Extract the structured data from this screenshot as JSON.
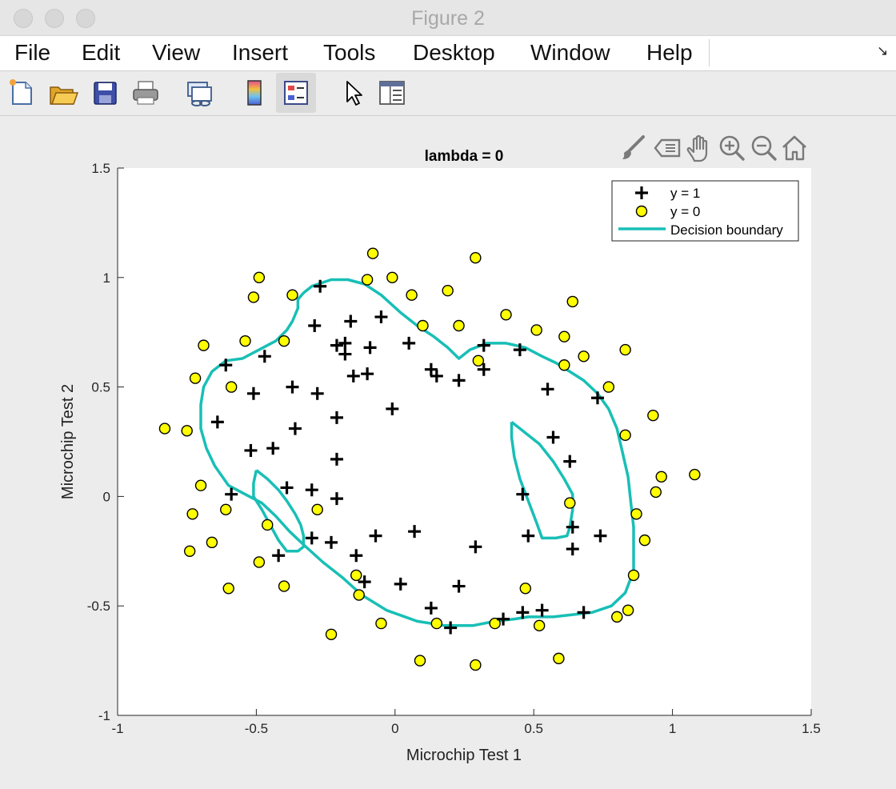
{
  "window": {
    "title": "Figure 2"
  },
  "menu": {
    "items": [
      "File",
      "Edit",
      "View",
      "Insert",
      "Tools",
      "Desktop",
      "Window",
      "Help"
    ],
    "dock_icon": "dock-arrow-icon"
  },
  "toolbar": {
    "icons": [
      "new-figure-icon",
      "open-file-icon",
      "save-icon",
      "print-icon",
      "link-plot-icon",
      "insert-colorbar-icon",
      "insert-legend-icon",
      "edit-plot-pointer-icon",
      "property-inspector-icon"
    ]
  },
  "axes_toolbar": {
    "icons": [
      "brush-icon",
      "data-tips-icon",
      "pan-hand-icon",
      "zoom-in-icon",
      "zoom-out-icon",
      "restore-view-home-icon"
    ]
  },
  "colors": {
    "boundary": "#18bfb6",
    "y0_fill": "#ffff00",
    "marker": "#000000",
    "axes_bg": "#ffffff",
    "figure_bg": "#ececec"
  },
  "chart_data": {
    "type": "scatter",
    "title": "lambda = 0",
    "xlabel": "Microchip Test 1",
    "ylabel": "Microchip Test 2",
    "xlim": [
      -1,
      1.5
    ],
    "ylim": [
      -1,
      1.5
    ],
    "xticks": [
      "-1",
      "-0.5",
      "0",
      "0.5",
      "1",
      "1.5"
    ],
    "yticks": [
      "-1",
      "-0.5",
      "0",
      "0.5",
      "1",
      "1.5"
    ],
    "grid": false,
    "legend": {
      "position": "top-right",
      "entries": [
        "y = 1",
        "y = 0",
        "Decision boundary"
      ]
    },
    "series": [
      {
        "name": "y = 1",
        "marker": "plus",
        "points": [
          [
            -0.27,
            0.96
          ],
          [
            -0.29,
            0.78
          ],
          [
            -0.16,
            0.8
          ],
          [
            -0.05,
            0.82
          ],
          [
            -0.21,
            0.69
          ],
          [
            -0.18,
            0.7
          ],
          [
            -0.09,
            0.68
          ],
          [
            -0.18,
            0.65
          ],
          [
            0.05,
            0.7
          ],
          [
            0.32,
            0.69
          ],
          [
            0.45,
            0.67
          ],
          [
            -0.61,
            0.6
          ],
          [
            -0.47,
            0.64
          ],
          [
            -0.15,
            0.55
          ],
          [
            -0.1,
            0.56
          ],
          [
            0.13,
            0.58
          ],
          [
            0.15,
            0.55
          ],
          [
            0.23,
            0.53
          ],
          [
            0.32,
            0.58
          ],
          [
            -0.51,
            0.47
          ],
          [
            -0.37,
            0.5
          ],
          [
            -0.28,
            0.47
          ],
          [
            0.55,
            0.49
          ],
          [
            0.73,
            0.45
          ],
          [
            -0.64,
            0.34
          ],
          [
            -0.36,
            0.31
          ],
          [
            -0.21,
            0.36
          ],
          [
            -0.01,
            0.4
          ],
          [
            -0.52,
            0.21
          ],
          [
            -0.44,
            0.22
          ],
          [
            -0.21,
            0.17
          ],
          [
            0.57,
            0.27
          ],
          [
            0.63,
            0.16
          ],
          [
            -0.59,
            0.01
          ],
          [
            -0.39,
            0.04
          ],
          [
            -0.3,
            0.03
          ],
          [
            -0.21,
            -0.01
          ],
          [
            0.46,
            0.01
          ],
          [
            -0.3,
            -0.19
          ],
          [
            -0.23,
            -0.21
          ],
          [
            -0.07,
            -0.18
          ],
          [
            0.07,
            -0.16
          ],
          [
            0.29,
            -0.23
          ],
          [
            0.48,
            -0.18
          ],
          [
            0.64,
            -0.14
          ],
          [
            0.74,
            -0.18
          ],
          [
            0.64,
            -0.24
          ],
          [
            -0.42,
            -0.27
          ],
          [
            -0.14,
            -0.27
          ],
          [
            -0.11,
            -0.39
          ],
          [
            0.02,
            -0.4
          ],
          [
            0.23,
            -0.41
          ],
          [
            0.13,
            -0.51
          ],
          [
            0.46,
            -0.53
          ],
          [
            0.53,
            -0.52
          ],
          [
            0.68,
            -0.53
          ],
          [
            0.39,
            -0.56
          ],
          [
            0.2,
            -0.6
          ]
        ]
      },
      {
        "name": "y = 0",
        "marker": "circle",
        "points": [
          [
            -0.08,
            1.11
          ],
          [
            0.29,
            1.09
          ],
          [
            -0.49,
            1.0
          ],
          [
            -0.1,
            0.99
          ],
          [
            -0.01,
            1.0
          ],
          [
            -0.51,
            0.91
          ],
          [
            -0.37,
            0.92
          ],
          [
            0.06,
            0.92
          ],
          [
            0.19,
            0.94
          ],
          [
            0.64,
            0.89
          ],
          [
            0.4,
            0.83
          ],
          [
            0.1,
            0.78
          ],
          [
            0.23,
            0.78
          ],
          [
            0.51,
            0.76
          ],
          [
            -0.54,
            0.71
          ],
          [
            -0.4,
            0.71
          ],
          [
            0.61,
            0.73
          ],
          [
            -0.69,
            0.69
          ],
          [
            0.83,
            0.67
          ],
          [
            0.68,
            0.64
          ],
          [
            0.3,
            0.62
          ],
          [
            0.61,
            0.6
          ],
          [
            -0.72,
            0.54
          ],
          [
            -0.59,
            0.5
          ],
          [
            0.77,
            0.5
          ],
          [
            -0.83,
            0.31
          ],
          [
            -0.75,
            0.3
          ],
          [
            0.93,
            0.37
          ],
          [
            0.83,
            0.28
          ],
          [
            -0.7,
            0.05
          ],
          [
            0.96,
            0.09
          ],
          [
            1.08,
            0.1
          ],
          [
            0.94,
            0.02
          ],
          [
            -0.73,
            -0.08
          ],
          [
            -0.61,
            -0.06
          ],
          [
            -0.28,
            -0.06
          ],
          [
            0.63,
            -0.03
          ],
          [
            0.87,
            -0.08
          ],
          [
            -0.46,
            -0.13
          ],
          [
            -0.66,
            -0.21
          ],
          [
            0.9,
            -0.2
          ],
          [
            -0.74,
            -0.25
          ],
          [
            -0.49,
            -0.3
          ],
          [
            -0.14,
            -0.36
          ],
          [
            0.86,
            -0.36
          ],
          [
            -0.6,
            -0.42
          ],
          [
            -0.4,
            -0.41
          ],
          [
            -0.13,
            -0.45
          ],
          [
            0.47,
            -0.42
          ],
          [
            0.84,
            -0.52
          ],
          [
            0.8,
            -0.55
          ],
          [
            -0.05,
            -0.58
          ],
          [
            0.15,
            -0.58
          ],
          [
            0.36,
            -0.58
          ],
          [
            0.52,
            -0.59
          ],
          [
            -0.23,
            -0.63
          ],
          [
            0.59,
            -0.74
          ],
          [
            0.09,
            -0.75
          ],
          [
            0.29,
            -0.77
          ]
        ]
      },
      {
        "name": "Decision boundary",
        "type": "line",
        "segments": [
          [
            [
              -0.33,
              0.93
            ],
            [
              -0.3,
              0.96
            ],
            [
              -0.23,
              0.99
            ],
            [
              -0.17,
              0.99
            ],
            [
              -0.11,
              0.97
            ],
            [
              -0.05,
              0.92
            ],
            [
              0.02,
              0.84
            ],
            [
              0.08,
              0.78
            ],
            [
              0.14,
              0.73
            ],
            [
              0.19,
              0.68
            ],
            [
              0.23,
              0.63
            ],
            [
              0.27,
              0.67
            ],
            [
              0.33,
              0.7
            ],
            [
              0.4,
              0.7
            ],
            [
              0.47,
              0.68
            ],
            [
              0.53,
              0.64
            ],
            [
              0.58,
              0.61
            ],
            [
              0.63,
              0.57
            ],
            [
              0.68,
              0.53
            ],
            [
              0.73,
              0.47
            ],
            [
              0.77,
              0.4
            ],
            [
              0.8,
              0.31
            ],
            [
              0.82,
              0.2
            ],
            [
              0.84,
              0.09
            ],
            [
              0.85,
              -0.03
            ],
            [
              0.86,
              -0.14
            ],
            [
              0.86,
              -0.24
            ],
            [
              0.86,
              -0.34
            ],
            [
              0.83,
              -0.44
            ],
            [
              0.78,
              -0.5
            ],
            [
              0.71,
              -0.53
            ],
            [
              0.64,
              -0.54
            ],
            [
              0.57,
              -0.55
            ],
            [
              0.48,
              -0.55
            ],
            [
              0.43,
              -0.56
            ],
            [
              0.36,
              -0.57
            ],
            [
              0.28,
              -0.59
            ],
            [
              0.18,
              -0.59
            ],
            [
              0.08,
              -0.57
            ],
            [
              -0.03,
              -0.52
            ],
            [
              -0.12,
              -0.45
            ],
            [
              -0.19,
              -0.37
            ],
            [
              -0.26,
              -0.3
            ],
            [
              -0.33,
              -0.22
            ],
            [
              -0.38,
              -0.16
            ],
            [
              -0.43,
              -0.09
            ],
            [
              -0.48,
              -0.03
            ],
            [
              -0.54,
              0.01
            ],
            [
              -0.6,
              0.05
            ],
            [
              -0.65,
              0.14
            ],
            [
              -0.68,
              0.22
            ],
            [
              -0.7,
              0.31
            ],
            [
              -0.7,
              0.42
            ],
            [
              -0.69,
              0.5
            ],
            [
              -0.66,
              0.57
            ],
            [
              -0.61,
              0.62
            ],
            [
              -0.55,
              0.63
            ],
            [
              -0.49,
              0.67
            ],
            [
              -0.43,
              0.71
            ],
            [
              -0.39,
              0.76
            ],
            [
              -0.37,
              0.8
            ],
            [
              -0.35,
              0.86
            ],
            [
              -0.35,
              0.9
            ],
            [
              -0.33,
              0.93
            ]
          ],
          [
            [
              0.42,
              0.34
            ],
            [
              0.46,
              0.3
            ],
            [
              0.52,
              0.24
            ],
            [
              0.57,
              0.16
            ],
            [
              0.61,
              0.08
            ],
            [
              0.64,
              0.01
            ],
            [
              0.64,
              -0.06
            ],
            [
              0.63,
              -0.14
            ],
            [
              0.62,
              -0.18
            ],
            [
              0.58,
              -0.19
            ],
            [
              0.53,
              -0.19
            ],
            [
              0.51,
              -0.12
            ],
            [
              0.48,
              -0.02
            ],
            [
              0.45,
              0.08
            ],
            [
              0.43,
              0.18
            ],
            [
              0.42,
              0.27
            ],
            [
              0.42,
              0.34
            ]
          ],
          [
            [
              -0.5,
              0.12
            ],
            [
              -0.46,
              0.08
            ],
            [
              -0.42,
              0.03
            ],
            [
              -0.39,
              -0.02
            ],
            [
              -0.36,
              -0.08
            ],
            [
              -0.34,
              -0.13
            ],
            [
              -0.33,
              -0.18
            ],
            [
              -0.33,
              -0.23
            ],
            [
              -0.35,
              -0.25
            ],
            [
              -0.39,
              -0.25
            ],
            [
              -0.42,
              -0.2
            ],
            [
              -0.45,
              -0.13
            ],
            [
              -0.48,
              -0.06
            ],
            [
              -0.51,
              0.0
            ],
            [
              -0.51,
              0.06
            ],
            [
              -0.5,
              0.12
            ]
          ]
        ]
      }
    ]
  }
}
